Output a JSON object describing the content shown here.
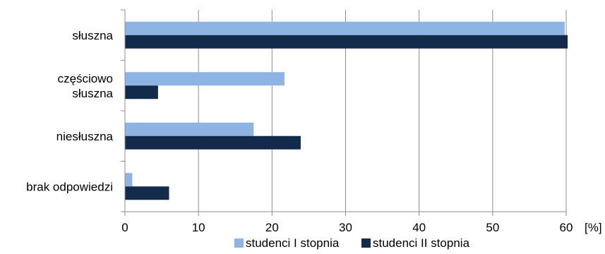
{
  "chart_data": {
    "type": "bar",
    "orientation": "horizontal",
    "categories": [
      [
        "słuszna"
      ],
      [
        "częściowo",
        "słuszna"
      ],
      [
        "niesłuszna"
      ],
      [
        "brak odpowiedzi"
      ]
    ],
    "series": [
      {
        "name": "studenci I stopnia",
        "color": "#8EB4E3",
        "values": [
          59.8,
          21.7,
          17.5,
          1.0
        ]
      },
      {
        "name": "studenci II stopnia",
        "color": "#142A4A",
        "values": [
          60.2,
          4.5,
          23.9,
          6.0
        ]
      }
    ],
    "xlim": [
      0,
      60
    ],
    "xticks": [
      0,
      10,
      20,
      30,
      40,
      50,
      60
    ],
    "unit_label": "[%]",
    "grid": true,
    "legend_position": "bottom"
  }
}
